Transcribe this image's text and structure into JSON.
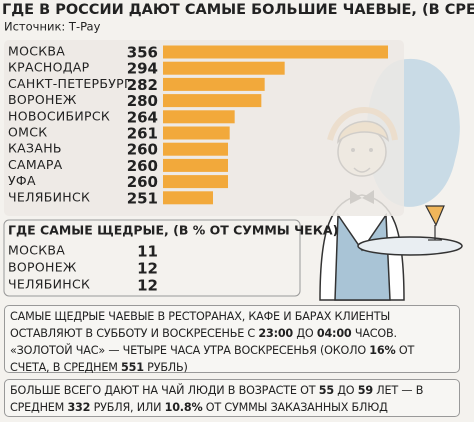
{
  "title": "ГДЕ В РОССИИ ДАЮТ САМЫЕ БОЛЬШИЕ ЧАЕВЫЕ, (В СРЕДНЕМ, В РУБЛЯХ)",
  "source": "Источник: Т-Pay",
  "chart_data": [
    {
      "type": "bar",
      "orientation": "horizontal",
      "color": "#f2a93b",
      "categories": [
        "МОСКВА",
        "КРАСНОДАР",
        "САНКТ-ПЕТЕРБУРГ",
        "ВОРОНЕЖ",
        "НОВОСИБИРСК",
        "ОМСК",
        "КАЗАНЬ",
        "САМАРА",
        "УФА",
        "ЧЕЛЯБИНСК"
      ],
      "values": [
        356,
        294,
        282,
        280,
        264,
        261,
        260,
        260,
        260,
        251
      ],
      "xlim": [
        221,
        356
      ]
    },
    {
      "type": "table",
      "title": "ГДЕ САМЫЕ ЩЕДРЫЕ, (В % ОТ СУММЫ ЧЕКА)",
      "categories": [
        "МОСКВА",
        "ВОРОНЕЖ",
        "ЧЕЛЯБИНСК"
      ],
      "values": [
        11,
        12,
        12
      ]
    }
  ],
  "notes": [
    [
      "САМЫЕ ЩЕДРЫЕ ЧАЕВЫЕ В РЕСТОРАНАХ, КАФЕ И БАРАХ КЛИЕНТЫ ОСТАВЛЯЮТ В СУББОТУ И ВОСКРЕСЕНЬЕ С ",
      "23:00",
      " ДО ",
      "04:00",
      " ЧАСОВ. «ЗОЛОТОЙ ЧАС» — ЧЕТЫРЕ ЧАСА УТРА ВОСКРЕСЕНЬЯ (ОКОЛО ",
      "16%",
      " ОТ СЧЕТА, В СРЕДНЕМ ",
      "551",
      " РУБЛЬ)"
    ],
    [
      "БОЛЬШЕ ВСЕГО ДАЮТ НА ЧАЙ ЛЮДИ В ВОЗРАСТЕ ОТ ",
      "55",
      " ДО ",
      "59",
      " ЛЕТ — В СРЕДНЕМ ",
      "332",
      " РУБЛЯ, ИЛИ ",
      "10.8%",
      " ОТ СУММЫ ЗАКАЗАННЫХ БЛЮД"
    ]
  ]
}
